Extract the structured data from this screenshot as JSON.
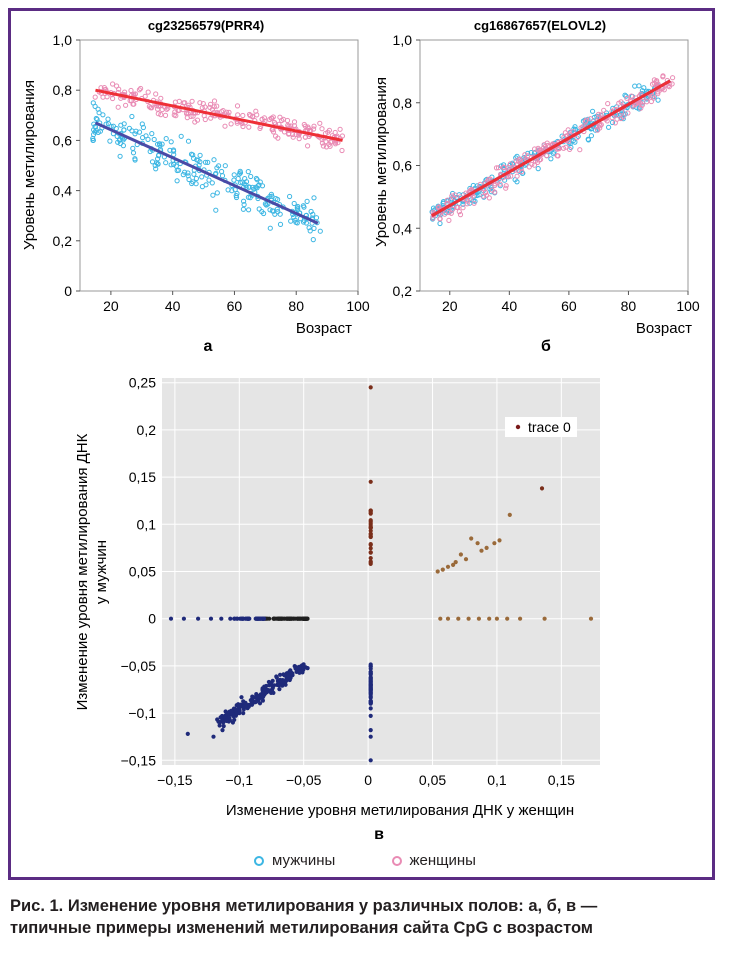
{
  "figure": {
    "caption_line1": "Рис. 1. Изменение уровня метилирования у различных полов: а, б, в —",
    "caption_line2": "типичные примеры изменений метилирования сайта CpG с возрастом",
    "border_color": "#5b2c83"
  },
  "legend": {
    "men_label": "мужчины",
    "women_label": "женщины",
    "men_color": "#3cb6e3",
    "women_color": "#e98bb4"
  },
  "chart_data": [
    {
      "panel": "а",
      "type": "scatter",
      "title": "cg23256579(PRR4)",
      "xlabel": "Возраст",
      "ylabel": "Уровень метилирования",
      "xlim": [
        10,
        100
      ],
      "ylim": [
        0,
        1.0
      ],
      "xticks": [
        "20",
        "40",
        "60",
        "80",
        "100"
      ],
      "yticks": [
        "0",
        "0,2",
        "0,4",
        "0,6",
        "0,8",
        "1,0"
      ],
      "grid": false,
      "series": [
        {
          "name": "мужчины",
          "color": "#3cb6e3",
          "x_range": [
            14,
            88
          ],
          "trend": [
            [
              15,
              0.67
            ],
            [
              87,
              0.27
            ]
          ],
          "trend_color": "#4a4aa6"
        },
        {
          "name": "женщины",
          "color": "#e98bb4",
          "x_range": [
            14,
            95
          ],
          "trend": [
            [
              15,
              0.8
            ],
            [
              95,
              0.6
            ]
          ],
          "trend_color": "#ee2f36"
        }
      ]
    },
    {
      "panel": "б",
      "type": "scatter",
      "title": "cg16867657(ELOVL2)",
      "xlabel": "Возраст",
      "ylabel": "Уровень метилирования",
      "xlim": [
        10,
        100
      ],
      "ylim": [
        0.2,
        1.0
      ],
      "xticks": [
        "20",
        "40",
        "60",
        "80",
        "100"
      ],
      "yticks": [
        "0,2",
        "0,4",
        "0,6",
        "0,8",
        "1,0"
      ],
      "grid": false,
      "series": [
        {
          "name": "мужчины",
          "color": "#3cb6e3",
          "x_range": [
            14,
            90
          ],
          "trend": [
            [
              14,
              0.44
            ],
            [
              94,
              0.87
            ]
          ],
          "trend_color": "#4a4aa6"
        },
        {
          "name": "женщины",
          "color": "#e98bb4",
          "x_range": [
            14,
            95
          ],
          "trend": [
            [
              14,
              0.44
            ],
            [
              94,
              0.87
            ]
          ],
          "trend_color": "#ee2f36"
        }
      ]
    },
    {
      "panel": "в",
      "type": "scatter",
      "title": "",
      "xlabel": "Изменение уровня метилирования ДНК у женщин",
      "ylabel_line1": "Изменение уровня метилирования ДНК",
      "ylabel_line2": "у мужчин",
      "xlim": [
        -0.16,
        0.18
      ],
      "ylim": [
        -0.155,
        0.255
      ],
      "xticks": [
        "−0,15",
        "−0,1",
        "−0,05",
        "0",
        "0,05",
        "0,1",
        "0,15"
      ],
      "yticks": [
        "−0,15",
        "−0,1",
        "−0,05",
        "0",
        "0,05",
        "0,1",
        "0,15",
        "0,2",
        "0,25"
      ],
      "grid": true,
      "legend_label": "trace 0",
      "legend_position": "top-right",
      "colors": {
        "low": "#1f2a7a",
        "mid": "#202020",
        "high": "#7a2e1a",
        "pos": "#9a6a3a"
      },
      "series": [
        {
          "name": "trace 0",
          "points": [
            [
              0.002,
              0.245
            ],
            [
              0.002,
              0.145
            ],
            [
              0.135,
              0.138
            ],
            [
              0.11,
              0.11
            ],
            [
              0.102,
              0.083
            ],
            [
              0.098,
              0.08
            ],
            [
              0.092,
              0.075
            ],
            [
              0.088,
              0.072
            ],
            [
              0.085,
              0.08
            ],
            [
              0.08,
              0.085
            ],
            [
              0.076,
              0.063
            ],
            [
              0.072,
              0.068
            ],
            [
              0.068,
              0.06
            ],
            [
              0.066,
              0.057
            ],
            [
              0.062,
              0.055
            ],
            [
              0.058,
              0.052
            ],
            [
              0.054,
              0.05
            ],
            [
              0.137,
              0.0
            ],
            [
              0.173,
              0.0
            ],
            [
              0.118,
              0.0
            ],
            [
              0.108,
              0.0
            ],
            [
              0.1,
              0.0
            ],
            [
              0.094,
              0.0
            ],
            [
              0.086,
              0.0
            ],
            [
              0.078,
              0.0
            ],
            [
              0.07,
              0.0
            ],
            [
              0.062,
              0.0
            ],
            [
              0.056,
              0.0
            ],
            [
              -0.153,
              0.0
            ],
            [
              -0.143,
              0.0
            ],
            [
              -0.132,
              0.0
            ],
            [
              -0.122,
              0.0
            ],
            [
              -0.114,
              0.0
            ],
            [
              -0.107,
              0.0
            ],
            [
              -0.14,
              -0.122
            ],
            [
              -0.12,
              -0.125
            ],
            [
              -0.113,
              -0.118
            ],
            [
              -0.11,
              -0.108
            ],
            [
              -0.105,
              -0.11
            ],
            [
              -0.1,
              -0.1
            ],
            [
              -0.095,
              -0.093
            ],
            [
              -0.09,
              -0.085
            ],
            [
              -0.085,
              -0.082
            ],
            [
              -0.08,
              -0.075
            ],
            [
              -0.075,
              -0.07
            ],
            [
              -0.07,
              -0.066
            ],
            [
              -0.065,
              -0.06
            ],
            [
              -0.06,
              -0.058
            ],
            [
              -0.055,
              -0.052
            ],
            [
              -0.05,
              -0.05
            ],
            [
              0.002,
              -0.15
            ],
            [
              0.002,
              -0.125
            ],
            [
              0.002,
              -0.118
            ],
            [
              0.002,
              -0.103
            ],
            [
              0.002,
              -0.095
            ]
          ]
        }
      ]
    }
  ]
}
